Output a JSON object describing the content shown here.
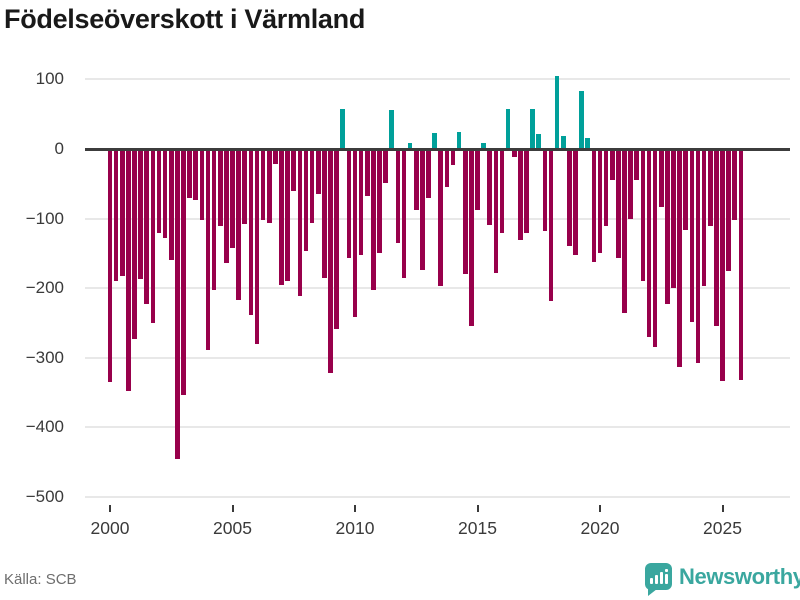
{
  "title": "Födelseöverskott i Värmland",
  "source": "Källa: SCB",
  "branding": {
    "name": "Newsworthy",
    "icon": "bar-chart-speech-bubble-icon"
  },
  "colors": {
    "positive": "#00a09a",
    "negative": "#98004b",
    "zero_line": "#3c3c3c",
    "grid": "#e8e8e8",
    "axis_text": "#3a3a3a",
    "title_text": "#191919",
    "source_text": "#6e6e6e",
    "brand_teal": "#3aa79f",
    "background": "#ffffff"
  },
  "chart_data": {
    "type": "bar",
    "title": "Födelseöverskott i Värmland",
    "frequency": "quarterly",
    "start": "2000 Q1",
    "end": "2025 Q4",
    "xlabel": "",
    "ylabel": "",
    "ylim": [
      -500,
      110
    ],
    "grid": true,
    "legend": false,
    "y_ticks": [
      {
        "value": 100,
        "label": "100"
      },
      {
        "value": 0,
        "label": "0"
      },
      {
        "value": -100,
        "label": "−100"
      },
      {
        "value": -200,
        "label": "−200"
      },
      {
        "value": -300,
        "label": "−300"
      },
      {
        "value": -400,
        "label": "−400"
      },
      {
        "value": -500,
        "label": "−500"
      }
    ],
    "x_ticks": [
      {
        "year": 2000,
        "label": "2000"
      },
      {
        "year": 2005,
        "label": "2005"
      },
      {
        "year": 2010,
        "label": "2010"
      },
      {
        "year": 2015,
        "label": "2015"
      },
      {
        "year": 2020,
        "label": "2020"
      },
      {
        "year": 2025,
        "label": "2025"
      }
    ],
    "color_rule": "negative values crimson, positive values teal",
    "series": [
      {
        "year": 2000,
        "q": [
          -335,
          -190,
          -183,
          -347
        ]
      },
      {
        "year": 2001,
        "q": [
          -273,
          -187,
          -222,
          -250
        ]
      },
      {
        "year": 2002,
        "q": [
          -121,
          -128,
          -160,
          -445
        ]
      },
      {
        "year": 2003,
        "q": [
          -353,
          -71,
          -73,
          -102
        ]
      },
      {
        "year": 2004,
        "q": [
          -289,
          -202,
          -111,
          -164
        ]
      },
      {
        "year": 2005,
        "q": [
          -142,
          -217,
          -108,
          -238
        ]
      },
      {
        "year": 2006,
        "q": [
          -280,
          -102,
          -106,
          -21
        ]
      },
      {
        "year": 2007,
        "q": [
          -196,
          -189,
          -61,
          -211
        ]
      },
      {
        "year": 2008,
        "q": [
          -146,
          -107,
          -65,
          -185
        ]
      },
      {
        "year": 2009,
        "q": [
          -322,
          -258,
          57,
          -157
        ]
      },
      {
        "year": 2010,
        "q": [
          -241,
          -152,
          -68,
          -202
        ]
      },
      {
        "year": 2011,
        "q": [
          -150,
          -49,
          56,
          -135
        ]
      },
      {
        "year": 2012,
        "q": [
          -186,
          8,
          -87,
          -174
        ]
      },
      {
        "year": 2013,
        "q": [
          -70,
          23,
          -197,
          -54
        ]
      },
      {
        "year": 2014,
        "q": [
          -23,
          25,
          -179,
          -255
        ]
      },
      {
        "year": 2015,
        "q": [
          -87,
          8,
          -109,
          -178
        ]
      },
      {
        "year": 2016,
        "q": [
          -120,
          58,
          -12,
          -131
        ]
      },
      {
        "year": 2017,
        "q": [
          -120,
          58,
          22,
          -118
        ]
      },
      {
        "year": 2018,
        "q": [
          -219,
          105,
          19,
          -140
        ]
      },
      {
        "year": 2019,
        "q": [
          -153,
          84,
          16,
          -163
        ]
      },
      {
        "year": 2020,
        "q": [
          -150,
          -110,
          -44,
          -157
        ]
      },
      {
        "year": 2021,
        "q": [
          -236,
          -100,
          -44,
          -190
        ]
      },
      {
        "year": 2022,
        "q": [
          -270,
          -284,
          -83,
          -222
        ]
      },
      {
        "year": 2023,
        "q": [
          -200,
          -313,
          -116,
          -248
        ]
      },
      {
        "year": 2024,
        "q": [
          -308,
          -197,
          -111,
          -255
        ]
      },
      {
        "year": 2025,
        "q": [
          -334,
          -176,
          -102,
          -332
        ]
      }
    ]
  }
}
